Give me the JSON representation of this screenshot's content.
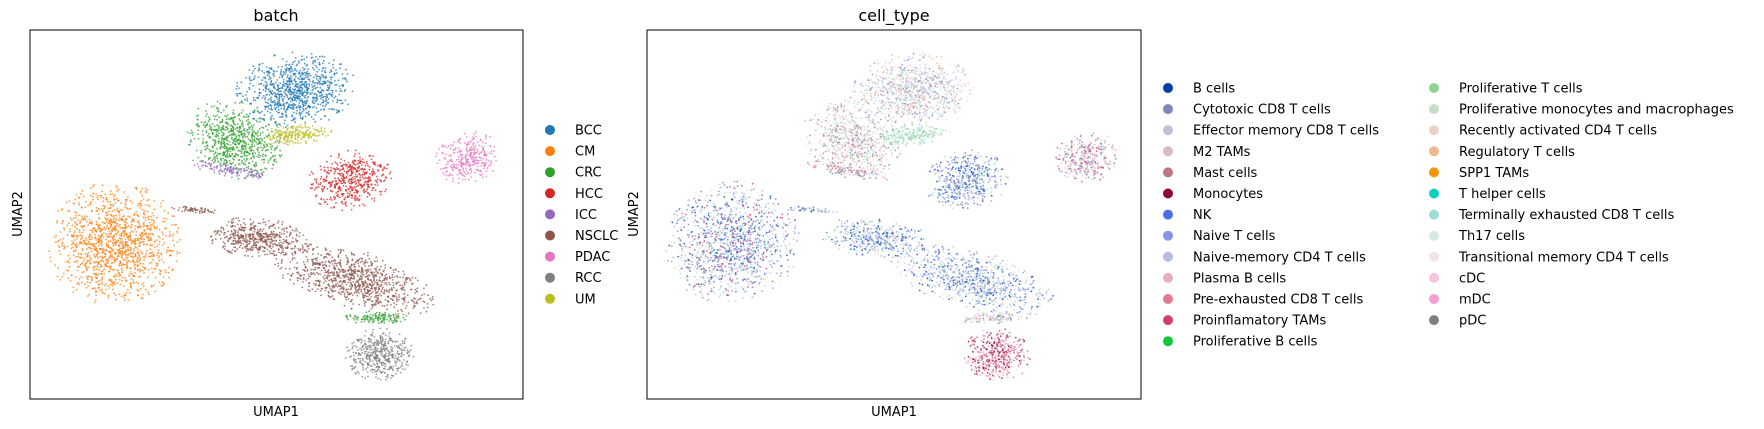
{
  "chart_data": [
    {
      "type": "scatter",
      "title": "batch",
      "xlabel": "UMAP1",
      "ylabel": "UMAP2",
      "grid": false,
      "ticks": false,
      "legend_position": "right",
      "legend": [
        {
          "name": "BCC",
          "color": "#1f77b4"
        },
        {
          "name": "CM",
          "color": "#ff7f0e"
        },
        {
          "name": "CRC",
          "color": "#2ca02c"
        },
        {
          "name": "HCC",
          "color": "#d62728"
        },
        {
          "name": "ICC",
          "color": "#9467bd"
        },
        {
          "name": "NSCLC",
          "color": "#8c564b"
        },
        {
          "name": "PDAC",
          "color": "#e377c2"
        },
        {
          "name": "RCC",
          "color": "#7f7f7f"
        },
        {
          "name": "UM",
          "color": "#bcbd22"
        }
      ]
    },
    {
      "type": "scatter",
      "title": "cell_type",
      "xlabel": "UMAP1",
      "ylabel": "UMAP2",
      "grid": false,
      "ticks": false,
      "legend_position": "right",
      "legend_columns": 2,
      "legend": [
        {
          "name": "B cells",
          "color": "#023fa5"
        },
        {
          "name": "Cytotoxic CD8 T cells",
          "color": "#7d87b9"
        },
        {
          "name": "Effector memory CD8 T cells",
          "color": "#bec1d4"
        },
        {
          "name": "M2 TAMs",
          "color": "#d6bcc0"
        },
        {
          "name": "Mast cells",
          "color": "#bb7784"
        },
        {
          "name": "Monocytes",
          "color": "#8e063b"
        },
        {
          "name": "NK",
          "color": "#4a6fe3"
        },
        {
          "name": "Naive T cells",
          "color": "#8595e1"
        },
        {
          "name": "Naive-memory CD4 T cells",
          "color": "#b5bbe3"
        },
        {
          "name": "Plasma B cells",
          "color": "#e6afb9"
        },
        {
          "name": "Pre-exhausted CD8 T cells",
          "color": "#e07b91"
        },
        {
          "name": "Proinflamatory TAMs",
          "color": "#d33f6a"
        },
        {
          "name": "Proliferative B cells",
          "color": "#11c638"
        },
        {
          "name": "Proliferative T cells",
          "color": "#8dd593"
        },
        {
          "name": "Proliferative monocytes and macrophages",
          "color": "#c6dec7"
        },
        {
          "name": "Recently activated CD4 T cells",
          "color": "#ead3c6"
        },
        {
          "name": "Regulatory T cells",
          "color": "#f0b98d"
        },
        {
          "name": "SPP1 TAMs",
          "color": "#ef9708"
        },
        {
          "name": "T helper cells",
          "color": "#0fcfc0"
        },
        {
          "name": "Terminally exhausted CD8 T cells",
          "color": "#9cded6"
        },
        {
          "name": "Th17 cells",
          "color": "#d5eae7"
        },
        {
          "name": "Transitional memory CD4 T cells",
          "color": "#f3e1eb"
        },
        {
          "name": "cDC",
          "color": "#f6c4e1"
        },
        {
          "name": "mDC",
          "color": "#f79cd4"
        },
        {
          "name": "pDC",
          "color": "#7f7f7f"
        }
      ]
    }
  ]
}
